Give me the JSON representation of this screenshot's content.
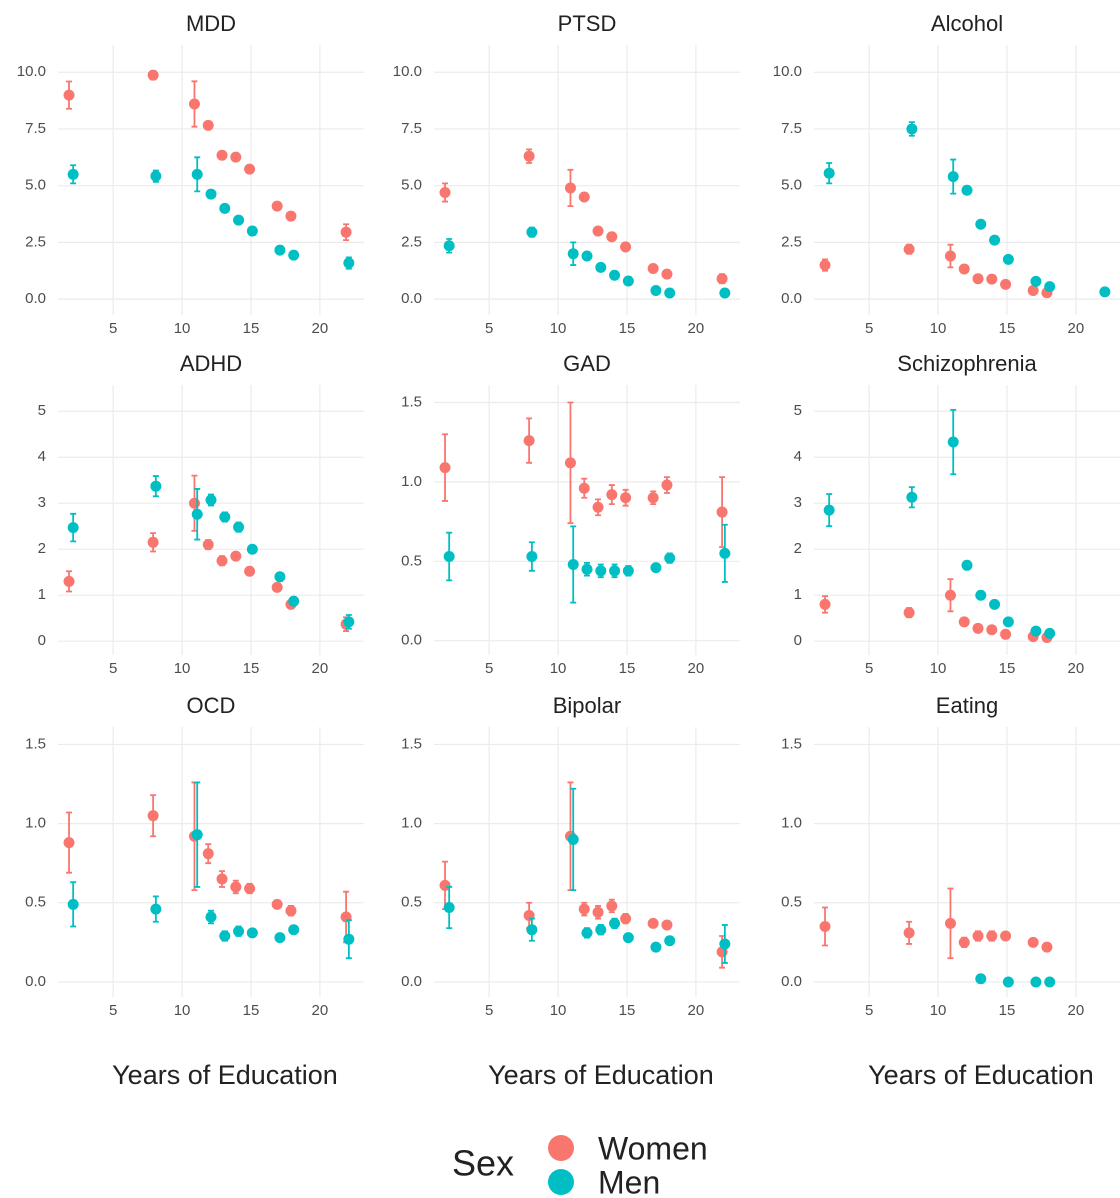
{
  "chart_data": [
    {
      "type": "scatter",
      "title": "MDD",
      "xlim": [
        1,
        23.2
      ],
      "xticks": [
        5,
        10,
        15,
        20
      ],
      "ylim": [
        -0.7,
        11.2
      ],
      "yticks": [
        {
          "value": 0,
          "label": "0.0"
        },
        2.5,
        {
          "value": 5,
          "label": "5.0"
        },
        7.5,
        {
          "value": 10,
          "label": "10.0"
        }
      ],
      "grid": true,
      "series": [
        {
          "name": "Women",
          "color": "#F8766D",
          "x": [
            1.8,
            7.9,
            10.9,
            11.9,
            12.9,
            13.9,
            14.9,
            16.9,
            17.9,
            21.9
          ],
          "values": [
            8.99,
            9.87,
            8.6,
            7.66,
            6.34,
            6.26,
            5.73,
            4.1,
            3.66,
            2.95
          ],
          "errors": [
            0.6,
            0.18,
            1.0,
            0.15,
            0.1,
            0.1,
            0.08,
            0.08,
            0.08,
            0.35
          ]
        },
        {
          "name": "Men",
          "color": "#00BFC4",
          "x": [
            2.1,
            8.1,
            11.1,
            12.1,
            13.1,
            14.1,
            15.1,
            17.1,
            18.1,
            22.1
          ],
          "values": [
            5.5,
            5.42,
            5.5,
            4.63,
            4.0,
            3.48,
            3.0,
            2.16,
            1.94,
            1.59
          ],
          "errors": [
            0.4,
            0.25,
            0.75,
            0.08,
            0.08,
            0.06,
            0.05,
            0.05,
            0.05,
            0.25
          ]
        }
      ]
    },
    {
      "type": "scatter",
      "title": "PTSD",
      "xlim": [
        1,
        23.2
      ],
      "xticks": [
        5,
        10,
        15,
        20
      ],
      "ylim": [
        -0.7,
        11.2
      ],
      "yticks": [
        {
          "value": 0,
          "label": "0.0"
        },
        2.5,
        {
          "value": 5,
          "label": "5.0"
        },
        7.5,
        {
          "value": 10,
          "label": "10.0"
        }
      ],
      "grid": true,
      "series": [
        {
          "name": "Women",
          "color": "#F8766D",
          "x": [
            1.8,
            7.9,
            10.9,
            11.9,
            12.9,
            13.9,
            14.9,
            16.9,
            17.9,
            21.9
          ],
          "values": [
            4.7,
            6.3,
            4.9,
            4.5,
            3.0,
            2.75,
            2.3,
            1.35,
            1.1,
            0.9
          ],
          "errors": [
            0.4,
            0.3,
            0.8,
            0.1,
            0.08,
            0.08,
            0.08,
            0.08,
            0.08,
            0.2
          ]
        },
        {
          "name": "Men",
          "color": "#00BFC4",
          "x": [
            2.1,
            8.1,
            11.1,
            12.1,
            13.1,
            14.1,
            15.1,
            17.1,
            18.1,
            22.1
          ],
          "values": [
            2.35,
            2.95,
            2.0,
            1.9,
            1.4,
            1.05,
            0.8,
            0.38,
            0.27,
            0.27
          ],
          "errors": [
            0.3,
            0.2,
            0.5,
            0.08,
            0.06,
            0.05,
            0.05,
            0.04,
            0.04,
            0.05
          ]
        }
      ]
    },
    {
      "type": "scatter",
      "title": "Alcohol",
      "xlim": [
        1,
        23.2
      ],
      "xticks": [
        5,
        10,
        15,
        20
      ],
      "ylim": [
        -0.7,
        11.2
      ],
      "yticks": [
        {
          "value": 0,
          "label": "0.0"
        },
        2.5,
        {
          "value": 5,
          "label": "5.0"
        },
        7.5,
        {
          "value": 10,
          "label": "10.0"
        }
      ],
      "grid": true,
      "series": [
        {
          "name": "Women",
          "color": "#F8766D",
          "x": [
            1.8,
            7.9,
            10.9,
            11.9,
            12.9,
            13.9,
            14.9,
            16.9,
            17.9
          ],
          "values": [
            1.5,
            2.2,
            1.9,
            1.33,
            0.9,
            0.88,
            0.65,
            0.38,
            0.28
          ],
          "errors": [
            0.25,
            0.2,
            0.5,
            0.08,
            0.06,
            0.05,
            0.05,
            0.04,
            0.04
          ]
        },
        {
          "name": "Men",
          "color": "#00BFC4",
          "x": [
            2.1,
            8.1,
            11.1,
            12.1,
            13.1,
            14.1,
            15.1,
            17.1,
            18.1,
            22.1
          ],
          "values": [
            5.55,
            7.5,
            5.4,
            4.8,
            3.3,
            2.6,
            1.75,
            0.78,
            0.55,
            0.32
          ],
          "errors": [
            0.45,
            0.3,
            0.75,
            0.1,
            0.08,
            0.06,
            0.06,
            0.05,
            0.05,
            0.05
          ]
        }
      ]
    },
    {
      "type": "scatter",
      "title": "ADHD",
      "xlim": [
        1,
        23.2
      ],
      "xticks": [
        5,
        10,
        15,
        20
      ],
      "ylim": [
        -0.3,
        5.57
      ],
      "yticks": [
        0,
        1,
        2,
        3,
        4,
        5
      ],
      "grid": true,
      "series": [
        {
          "name": "Women",
          "color": "#F8766D",
          "x": [
            1.8,
            7.9,
            10.9,
            11.9,
            12.9,
            13.9,
            14.9,
            16.9,
            17.9,
            21.9
          ],
          "values": [
            1.3,
            2.15,
            3.0,
            2.1,
            1.75,
            1.85,
            1.52,
            1.17,
            0.8,
            0.37
          ],
          "errors": [
            0.22,
            0.2,
            0.6,
            0.1,
            0.1,
            0.08,
            0.05,
            0.05,
            0.05,
            0.15
          ]
        },
        {
          "name": "Men",
          "color": "#00BFC4",
          "x": [
            2.1,
            8.1,
            11.1,
            12.1,
            13.1,
            14.1,
            15.1,
            17.1,
            18.1,
            22.1
          ],
          "values": [
            2.47,
            3.37,
            2.76,
            3.07,
            2.7,
            2.48,
            2.0,
            1.4,
            0.87,
            0.42
          ],
          "errors": [
            0.3,
            0.22,
            0.55,
            0.12,
            0.1,
            0.1,
            0.05,
            0.05,
            0.05,
            0.15
          ]
        }
      ]
    },
    {
      "type": "scatter",
      "title": "GAD",
      "xlim": [
        1,
        23.2
      ],
      "xticks": [
        5,
        10,
        15,
        20
      ],
      "ylim": [
        -0.09,
        1.61
      ],
      "yticks": [
        {
          "value": 0,
          "label": "0.0"
        },
        0.5,
        {
          "value": 1,
          "label": "1.0"
        },
        1.5
      ],
      "grid": true,
      "series": [
        {
          "name": "Women",
          "color": "#F8766D",
          "x": [
            1.8,
            7.9,
            10.9,
            11.9,
            12.9,
            13.9,
            14.9,
            16.9,
            17.9,
            21.9
          ],
          "values": [
            1.09,
            1.26,
            1.12,
            0.96,
            0.84,
            0.92,
            0.9,
            0.9,
            0.98,
            0.81
          ],
          "errors": [
            0.21,
            0.14,
            0.38,
            0.06,
            0.05,
            0.06,
            0.05,
            0.04,
            0.05,
            0.22
          ]
        },
        {
          "name": "Men",
          "color": "#00BFC4",
          "x": [
            2.1,
            8.1,
            11.1,
            12.1,
            13.1,
            14.1,
            15.1,
            17.1,
            18.1,
            22.1
          ],
          "values": [
            0.53,
            0.53,
            0.48,
            0.45,
            0.44,
            0.44,
            0.44,
            0.46,
            0.52,
            0.55
          ],
          "errors": [
            0.15,
            0.09,
            0.24,
            0.04,
            0.04,
            0.04,
            0.03,
            0.02,
            0.03,
            0.18
          ]
        }
      ]
    },
    {
      "type": "scatter",
      "title": "Schizophrenia",
      "xlim": [
        1,
        23.2
      ],
      "xticks": [
        5,
        10,
        15,
        20
      ],
      "ylim": [
        -0.3,
        5.57
      ],
      "yticks": [
        0,
        1,
        2,
        3,
        4,
        5
      ],
      "grid": true,
      "series": [
        {
          "name": "Women",
          "color": "#F8766D",
          "x": [
            1.8,
            7.9,
            10.9,
            11.9,
            12.9,
            13.9,
            14.9,
            16.9,
            17.9
          ],
          "values": [
            0.8,
            0.62,
            1.0,
            0.42,
            0.28,
            0.25,
            0.15,
            0.1,
            0.08
          ],
          "errors": [
            0.18,
            0.1,
            0.35,
            0.05,
            0.04,
            0.04,
            0.03,
            0.03,
            0.03
          ]
        },
        {
          "name": "Men",
          "color": "#00BFC4",
          "x": [
            2.1,
            8.1,
            11.1,
            12.1,
            13.1,
            14.1,
            15.1,
            17.1,
            18.1
          ],
          "values": [
            2.85,
            3.13,
            4.33,
            1.65,
            1.0,
            0.8,
            0.42,
            0.22,
            0.17
          ],
          "errors": [
            0.35,
            0.22,
            0.7,
            0.08,
            0.05,
            0.05,
            0.04,
            0.03,
            0.03
          ]
        }
      ]
    },
    {
      "type": "scatter",
      "title": "OCD",
      "xlabel": "Years of Education",
      "xlim": [
        1,
        23.2
      ],
      "xticks": [
        5,
        10,
        15,
        20
      ],
      "ylim": [
        -0.095,
        1.61
      ],
      "yticks": [
        {
          "value": 0,
          "label": "0.0"
        },
        0.5,
        {
          "value": 1,
          "label": "1.0"
        },
        1.5
      ],
      "grid": true,
      "series": [
        {
          "name": "Women",
          "color": "#F8766D",
          "x": [
            1.8,
            7.9,
            10.9,
            11.9,
            12.9,
            13.9,
            14.9,
            16.9,
            17.9,
            21.9
          ],
          "values": [
            0.88,
            1.05,
            0.92,
            0.81,
            0.65,
            0.6,
            0.59,
            0.49,
            0.45,
            0.41
          ],
          "errors": [
            0.19,
            0.13,
            0.34,
            0.06,
            0.05,
            0.04,
            0.03,
            0.02,
            0.03,
            0.16
          ]
        },
        {
          "name": "Men",
          "color": "#00BFC4",
          "x": [
            2.1,
            8.1,
            11.1,
            12.1,
            13.1,
            14.1,
            15.1,
            17.1,
            18.1,
            22.1
          ],
          "values": [
            0.49,
            0.46,
            0.93,
            0.41,
            0.29,
            0.32,
            0.31,
            0.28,
            0.33,
            0.27
          ],
          "errors": [
            0.14,
            0.08,
            0.33,
            0.04,
            0.03,
            0.03,
            0.02,
            0.01,
            0.02,
            0.12
          ]
        }
      ]
    },
    {
      "type": "scatter",
      "title": "Bipolar",
      "xlabel": "Years of Education",
      "xlim": [
        1,
        23.2
      ],
      "xticks": [
        5,
        10,
        15,
        20
      ],
      "ylim": [
        -0.095,
        1.61
      ],
      "yticks": [
        {
          "value": 0,
          "label": "0.0"
        },
        0.5,
        {
          "value": 1,
          "label": "1.0"
        },
        1.5
      ],
      "grid": true,
      "series": [
        {
          "name": "Women",
          "color": "#F8766D",
          "x": [
            1.8,
            7.9,
            10.9,
            11.9,
            12.9,
            13.9,
            14.9,
            16.9,
            17.9,
            21.9
          ],
          "values": [
            0.61,
            0.42,
            0.92,
            0.46,
            0.44,
            0.48,
            0.4,
            0.37,
            0.36,
            0.19
          ],
          "errors": [
            0.15,
            0.08,
            0.34,
            0.04,
            0.04,
            0.04,
            0.03,
            0.02,
            0.02,
            0.1
          ]
        },
        {
          "name": "Men",
          "color": "#00BFC4",
          "x": [
            2.1,
            8.1,
            11.1,
            12.1,
            13.1,
            14.1,
            15.1,
            17.1,
            18.1,
            22.1
          ],
          "values": [
            0.47,
            0.33,
            0.9,
            0.31,
            0.33,
            0.37,
            0.28,
            0.22,
            0.26,
            0.24
          ],
          "errors": [
            0.13,
            0.07,
            0.32,
            0.03,
            0.03,
            0.03,
            0.02,
            0.01,
            0.02,
            0.12
          ]
        }
      ]
    },
    {
      "type": "scatter",
      "title": "Eating",
      "xlabel": "Years of Education",
      "xlim": [
        1,
        23.2
      ],
      "xticks": [
        5,
        10,
        15,
        20
      ],
      "ylim": [
        -0.095,
        1.61
      ],
      "yticks": [
        {
          "value": 0,
          "label": "0.0"
        },
        0.5,
        {
          "value": 1,
          "label": "1.0"
        },
        1.5
      ],
      "grid": true,
      "series": [
        {
          "name": "Women",
          "color": "#F8766D",
          "x": [
            1.8,
            7.9,
            10.9,
            11.9,
            12.9,
            13.9,
            14.9,
            16.9,
            17.9
          ],
          "values": [
            0.35,
            0.31,
            0.37,
            0.25,
            0.29,
            0.29,
            0.29,
            0.25,
            0.22
          ],
          "errors": [
            0.12,
            0.07,
            0.22,
            0.03,
            0.03,
            0.03,
            0.02,
            0.01,
            0.01
          ]
        },
        {
          "name": "Men",
          "color": "#00BFC4",
          "x": [
            13.1,
            15.1,
            17.1,
            18.1
          ],
          "values": [
            0.02,
            0.0,
            0.0,
            0.0
          ],
          "errors": [
            0.005,
            0.003,
            0.003,
            0.003
          ]
        }
      ]
    }
  ],
  "legend": {
    "title": "Sex"
  }
}
